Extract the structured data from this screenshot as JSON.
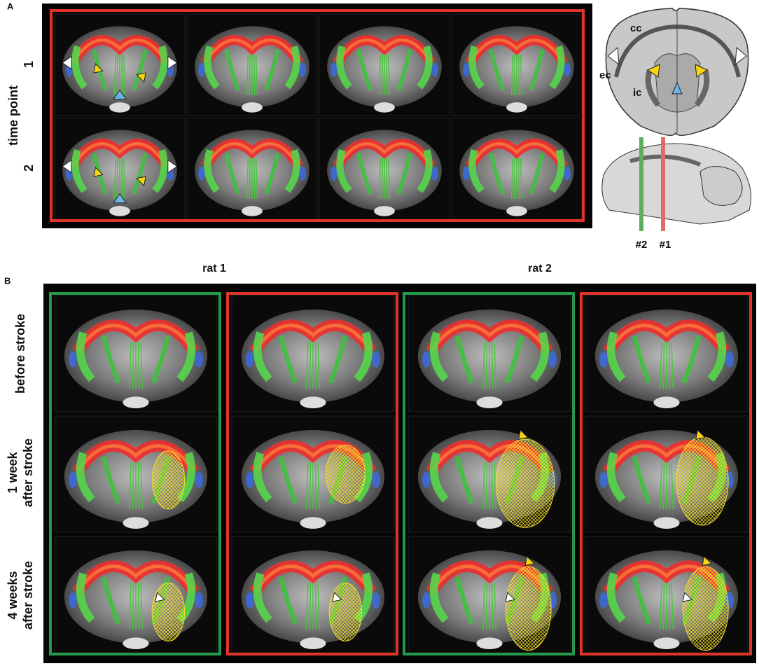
{
  "panel_a": {
    "label": "A",
    "y_axis_title": "time point",
    "rows": [
      "1",
      "2"
    ],
    "schematic": {
      "regions": [
        "cc",
        "ec",
        "ic"
      ],
      "sections": [
        "#2",
        "#1"
      ]
    }
  },
  "panel_b": {
    "label": "B",
    "columns": [
      "rat 1",
      "rat 2"
    ],
    "rows": [
      [
        "before stroke"
      ],
      [
        "1 week",
        "after stroke"
      ],
      [
        "4 weeks",
        "after stroke"
      ]
    ]
  }
}
